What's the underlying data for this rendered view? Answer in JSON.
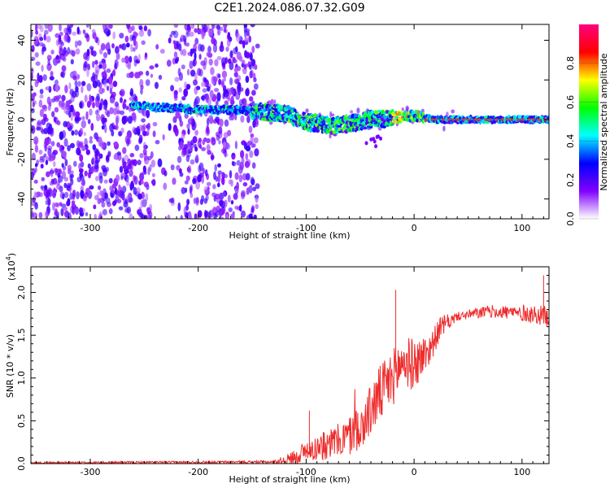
{
  "chart_data": [
    {
      "type": "heatmap",
      "title": "C2E1.2024.086.07.32.G09",
      "xlabel": "Height of straight line (km)",
      "ylabel": "Frequency (Hz)",
      "xlim": [
        -355,
        125
      ],
      "ylim": [
        -50,
        48
      ],
      "xticks": [
        -300,
        -200,
        -100,
        0,
        100
      ],
      "yticks": [
        -40,
        -20,
        0,
        20,
        40
      ],
      "xtick_labels": [
        "-300",
        "-200",
        "-100",
        "0",
        "100"
      ],
      "ytick_labels": [
        "-40",
        "-20",
        "0",
        "20",
        "40"
      ],
      "noise_region_x": [
        -355,
        -145
      ],
      "noise_gap_x": [
        -245,
        -225
      ],
      "ridge": [
        {
          "x": -260,
          "f": 7
        },
        {
          "x": -230,
          "f": 6
        },
        {
          "x": -200,
          "f": 5
        },
        {
          "x": -170,
          "f": 5
        },
        {
          "x": -140,
          "f": 4
        },
        {
          "x": -120,
          "f": 3
        },
        {
          "x": -100,
          "f": -1
        },
        {
          "x": -80,
          "f": -3
        },
        {
          "x": -60,
          "f": -2
        },
        {
          "x": -40,
          "f": 0
        },
        {
          "x": -20,
          "f": 1
        },
        {
          "x": 0,
          "f": 2
        },
        {
          "x": 20,
          "f": 0
        },
        {
          "x": 60,
          "f": 0
        },
        {
          "x": 100,
          "f": 0
        },
        {
          "x": 125,
          "f": 0
        }
      ],
      "colorbar": {
        "label": "Normalized spectral amplitude",
        "ticks": [
          0.0,
          0.2,
          0.4,
          0.6,
          0.8
        ],
        "tick_labels": [
          "0.0",
          "0.2",
          "0.4",
          "0.6",
          "0.8"
        ],
        "range": [
          0,
          1
        ],
        "colors": [
          "#ffffff",
          "#8000ff",
          "#0000ff",
          "#00ffff",
          "#00ff00",
          "#ffff00",
          "#ff0000",
          "#ff0080"
        ]
      }
    },
    {
      "type": "line",
      "xlabel": "Height of straight line (km)",
      "ylabel": "SNR (10 * v/v)",
      "y_multiplier_label": "(x10",
      "y_multiplier_exp": "4",
      "y_multiplier_close": ")",
      "xlim": [
        -355,
        125
      ],
      "ylim": [
        0,
        2.3
      ],
      "xticks": [
        -300,
        -200,
        -100,
        0,
        100
      ],
      "yticks": [
        0.0,
        0.5,
        1.0,
        1.5,
        2.0
      ],
      "xtick_labels": [
        "-300",
        "-200",
        "-100",
        "0",
        "100"
      ],
      "ytick_labels": [
        "0.0",
        "0.5",
        "1.0",
        "1.5",
        "2.0"
      ],
      "line_color": "#ee2c2c",
      "trend": [
        {
          "x": -355,
          "y": 0.01
        },
        {
          "x": -130,
          "y": 0.02
        },
        {
          "x": -115,
          "y": 0.05
        },
        {
          "x": -100,
          "y": 0.15
        },
        {
          "x": -80,
          "y": 0.22
        },
        {
          "x": -60,
          "y": 0.32
        },
        {
          "x": -45,
          "y": 0.5
        },
        {
          "x": -35,
          "y": 0.75
        },
        {
          "x": -20,
          "y": 1.0
        },
        {
          "x": -10,
          "y": 1.2
        },
        {
          "x": 0,
          "y": 1.15
        },
        {
          "x": 15,
          "y": 1.35
        },
        {
          "x": 25,
          "y": 1.6
        },
        {
          "x": 40,
          "y": 1.72
        },
        {
          "x": 70,
          "y": 1.78
        },
        {
          "x": 100,
          "y": 1.76
        },
        {
          "x": 125,
          "y": 1.72
        }
      ],
      "spike_points": [
        {
          "x": -97,
          "y": 0.62
        },
        {
          "x": -17,
          "y": 2.03
        },
        {
          "x": 120,
          "y": 2.2
        }
      ],
      "noise_amplitude": [
        {
          "x": -355,
          "a": 0.01
        },
        {
          "x": -130,
          "a": 0.015
        },
        {
          "x": -110,
          "a": 0.1
        },
        {
          "x": -70,
          "a": 0.2
        },
        {
          "x": -30,
          "a": 0.35
        },
        {
          "x": 0,
          "a": 0.3
        },
        {
          "x": 20,
          "a": 0.15
        },
        {
          "x": 40,
          "a": 0.05
        },
        {
          "x": 80,
          "a": 0.08
        },
        {
          "x": 125,
          "a": 0.12
        }
      ]
    }
  ]
}
